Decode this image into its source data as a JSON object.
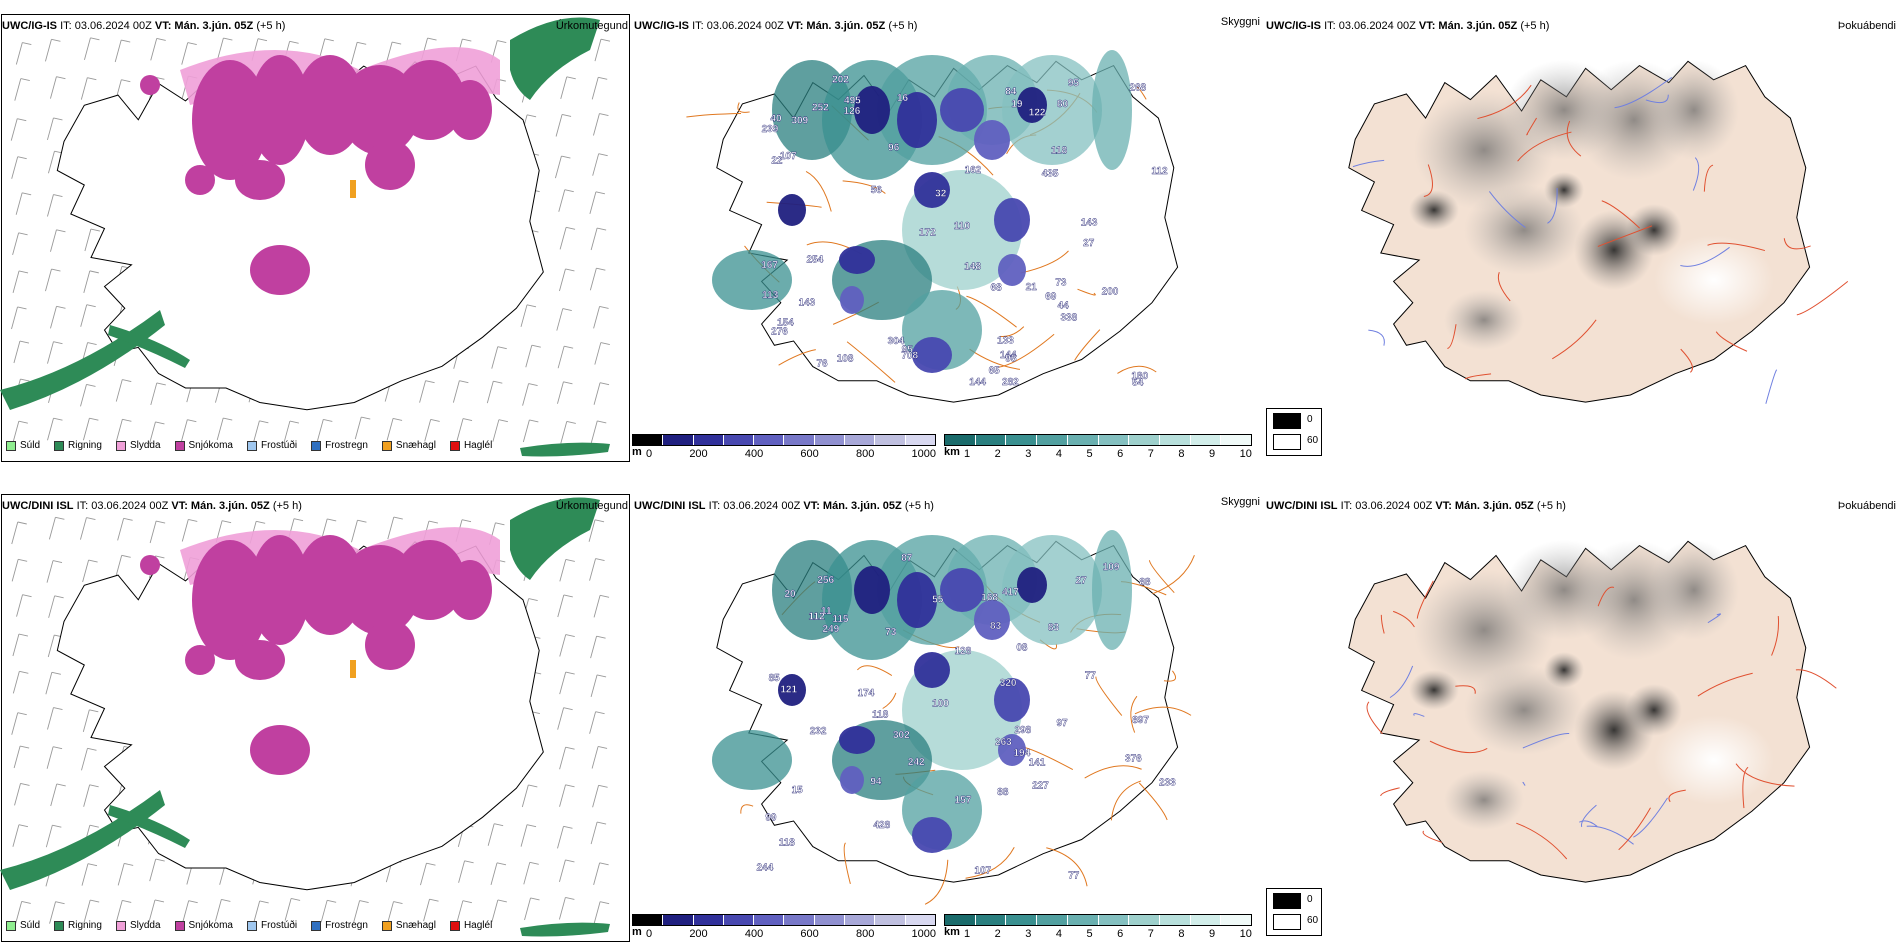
{
  "rows": [
    {
      "model": "UWC/IG-IS",
      "precip": {
        "model": "UWC/IG-IS",
        "it_label": "IT: 03.06.2024 00Z",
        "vt_label": "VT: Mán. 3.jún. 05Z",
        "lead": "(+5 h)",
        "title_right": "Úrkomutegund"
      },
      "cloud": {
        "model": "UWC/IG-IS",
        "it_label": "IT: 03.06.2024 00Z",
        "vt_label": "VT: Mán. 3.jún. 05Z",
        "lead": "(+5 h)",
        "title_right": "Skyggni",
        "labels": [
          "200",
          "304",
          "21",
          "54",
          "167",
          "180",
          "202",
          "118",
          "144",
          "239",
          "80",
          "276",
          "338",
          "172",
          "84",
          "122",
          "154",
          "282",
          "254",
          "22",
          "95",
          "110",
          "435",
          "495",
          "40",
          "96",
          "144",
          "76",
          "56",
          "133",
          "252",
          "268",
          "95",
          "16",
          "148",
          "708",
          "309",
          "32",
          "44",
          "73",
          "113",
          "108",
          "65",
          "95",
          "143",
          "112",
          "162",
          "27",
          "126",
          "107",
          "68",
          "69",
          "19",
          "143"
        ]
      },
      "fog": {
        "model": "UWC/IG-IS",
        "it_label": "IT: 03.06.2024 00Z",
        "vt_label": "VT: Mán. 3.jún. 05Z",
        "lead": "(+5 h)",
        "title_right": "Þokuábendi"
      }
    },
    {
      "model": "UWC/DINI ISL",
      "precip": {
        "model": "UWC/DINI ISL",
        "it_label": "IT: 03.06.2024 00Z",
        "vt_label": "VT: Mán. 3.jún. 05Z",
        "lead": "(+5 h)",
        "title_right": "Úrkomutegund"
      },
      "cloud": {
        "model": "UWC/DINI ISL",
        "it_label": "IT: 03.06.2024 00Z",
        "vt_label": "VT: Mán. 3.jún. 05Z",
        "lead": "(+5 h)",
        "title_right": "Skyggni",
        "labels": [
          "128",
          "168",
          "88",
          "11",
          "417",
          "242",
          "94",
          "115",
          "157",
          "249",
          "227",
          "174",
          "256",
          "87",
          "244",
          "263",
          "320",
          "15",
          "27",
          "83",
          "109",
          "118",
          "99",
          "83",
          "77",
          "897",
          "194",
          "428",
          "141",
          "302",
          "376",
          "298",
          "85",
          "88",
          "232",
          "121",
          "97",
          "107",
          "77",
          "08",
          "112",
          "100",
          "233",
          "118",
          "55",
          "20",
          "73"
        ]
      },
      "fog": {
        "model": "UWC/DINI ISL",
        "it_label": "IT: 03.06.2024 00Z",
        "vt_label": "VT: Mán. 3.jún. 05Z",
        "lead": "(+5 h)",
        "title_right": "Þokuábendi"
      }
    }
  ],
  "precip_legend": [
    {
      "label": "Súld",
      "color": "#90ee90"
    },
    {
      "label": "Rigning",
      "color": "#2e8b57"
    },
    {
      "label": "Slydda",
      "color": "#f0a0d8"
    },
    {
      "label": "Snjókoma",
      "color": "#c040a0"
    },
    {
      "label": "Frostúði",
      "color": "#a0c8f0"
    },
    {
      "label": "Frostregn",
      "color": "#3070c0"
    },
    {
      "label": "Snæhagl",
      "color": "#f0a020"
    },
    {
      "label": "Haglél",
      "color": "#e01010"
    }
  ],
  "cloud_base": {
    "unit": "m",
    "ticks": [
      "0",
      "200",
      "400",
      "600",
      "800",
      "1000"
    ],
    "colors": [
      "#000000",
      "#202080",
      "#30309a",
      "#4848b0",
      "#6060c0",
      "#7878c8",
      "#9090d0",
      "#a8a8d8",
      "#c0c0e0",
      "#d8d8f0"
    ]
  },
  "visibility": {
    "unit": "km",
    "ticks": [
      "1",
      "2",
      "3",
      "4",
      "5",
      "6",
      "7",
      "8",
      "9",
      "10"
    ],
    "colors": [
      "#1a6b6b",
      "#2a7f7f",
      "#3a9090",
      "#52a0a0",
      "#6ab0b0",
      "#84c0c0",
      "#9ed0cc",
      "#b8e0dc",
      "#d2eeea",
      "#f0faf8"
    ]
  },
  "fog_legend": [
    {
      "label": "0",
      "color": "#000000"
    },
    {
      "label": "60",
      "color": "#ffffff"
    }
  ]
}
